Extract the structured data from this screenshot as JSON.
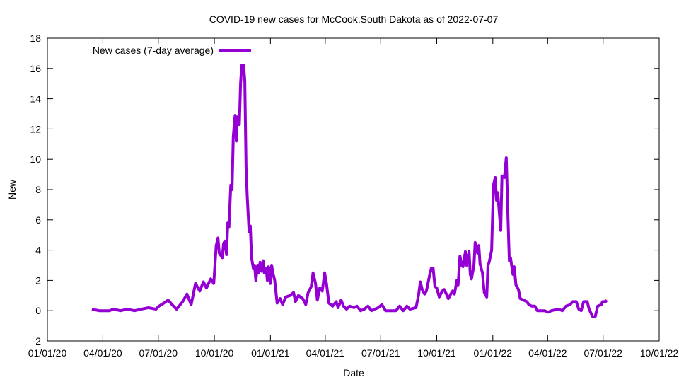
{
  "chart_data": {
    "type": "line",
    "title": "COVID-19 new cases for McCook,South Dakota as of 2022-07-07",
    "xlabel": "Date",
    "ylabel": "New",
    "ylim": [
      -2,
      18
    ],
    "yticks": [
      -2,
      0,
      2,
      4,
      6,
      8,
      10,
      12,
      14,
      16,
      18
    ],
    "xlim_days_since_2020_01_01": [
      0,
      1004
    ],
    "xticks": [
      {
        "label": "01/01/20",
        "day": 0
      },
      {
        "label": "04/01/20",
        "day": 91
      },
      {
        "label": "07/01/20",
        "day": 182
      },
      {
        "label": "10/01/20",
        "day": 274
      },
      {
        "label": "01/01/21",
        "day": 366
      },
      {
        "label": "04/01/21",
        "day": 456
      },
      {
        "label": "07/01/21",
        "day": 547
      },
      {
        "label": "10/01/21",
        "day": 639
      },
      {
        "label": "01/01/22",
        "day": 731
      },
      {
        "label": "04/01/22",
        "day": 821
      },
      {
        "label": "07/01/22",
        "day": 912
      },
      {
        "label": "10/01/22",
        "day": 1004
      }
    ],
    "grid": false,
    "legend_position": "top-left",
    "series": [
      {
        "name": "New cases (7-day average)",
        "color": "#9400d3",
        "x": [
          73,
          85,
          102,
          108,
          120,
          131,
          143,
          154,
          166,
          178,
          183,
          191,
          198,
          207,
          212,
          222,
          229,
          236,
          243,
          250,
          256,
          261,
          268,
          273,
          277,
          280,
          282,
          287,
          289,
          291,
          294,
          296,
          298,
          301,
          303,
          305,
          308,
          310,
          312,
          315,
          317,
          319,
          322,
          324,
          326,
          328,
          331,
          333,
          335,
          338,
          340,
          342,
          345,
          347,
          349,
          352,
          354,
          356,
          359,
          361,
          363,
          366,
          368,
          370,
          373,
          377,
          382,
          386,
          391,
          398,
          404,
          407,
          412,
          419,
          424,
          428,
          433,
          436,
          440,
          443,
          447,
          451,
          455,
          458,
          462,
          468,
          474,
          477,
          482,
          486,
          491,
          496,
          503,
          508,
          514,
          520,
          526,
          532,
          537,
          543,
          549,
          555,
          572,
          578,
          584,
          590,
          595,
          605,
          609,
          612,
          615,
          619,
          622,
          627,
          630,
          633,
          636,
          639,
          643,
          648,
          651,
          656,
          658,
          662,
          665,
          668,
          672,
          674,
          677,
          680,
          682,
          686,
          688,
          692,
          694,
          696,
          700,
          702,
          706,
          708,
          710,
          714,
          717,
          721,
          723,
          725,
          729,
          732,
          735,
          737,
          739,
          744,
          746,
          750,
          753,
          756,
          758,
          760,
          764,
          766,
          769,
          773,
          776,
          781,
          787,
          790,
          795,
          800,
          804,
          816,
          822,
          827,
          839,
          845,
          851,
          858,
          862,
          868,
          872,
          876,
          880,
          886,
          889,
          895,
          899,
          903,
          909,
          911,
          916,
          918
        ],
        "y": [
          0.1,
          0,
          0,
          0.1,
          0,
          0.1,
          0,
          0.1,
          0.2,
          0.1,
          0.3,
          0.5,
          0.7,
          0.3,
          0.1,
          0.6,
          1.1,
          0.4,
          1.8,
          1.3,
          1.9,
          1.5,
          2.1,
          1.8,
          4.3,
          4.8,
          3.8,
          3.5,
          4.4,
          4.6,
          3.7,
          5.8,
          5.5,
          8.3,
          8.0,
          11.5,
          12.9,
          11.2,
          12.8,
          12.3,
          15.0,
          16.2,
          16.2,
          15.2,
          9.5,
          7.5,
          5.2,
          5.6,
          3.5,
          2.8,
          3.0,
          2.0,
          3.0,
          2.5,
          3.2,
          2.6,
          3.3,
          2.5,
          2.8,
          2.0,
          2.9,
          1.8,
          3.0,
          2.5,
          2.0,
          0.5,
          0.8,
          0.4,
          0.9,
          1.0,
          1.2,
          0.6,
          1.0,
          0.8,
          0.4,
          1.2,
          1.6,
          2.5,
          1.8,
          0.7,
          1.5,
          1.3,
          2.5,
          1.8,
          0.5,
          0.3,
          0.6,
          0.2,
          0.7,
          0.3,
          0.1,
          0.3,
          0.2,
          0.3,
          0,
          0.1,
          0.3,
          0,
          0.1,
          0.2,
          0.4,
          0,
          0,
          0.3,
          0,
          0.3,
          0.1,
          0.2,
          1.0,
          1.9,
          1.4,
          1.1,
          1.3,
          2.3,
          2.8,
          2.8,
          1.6,
          1.5,
          0.9,
          1.3,
          1.4,
          1.0,
          0.8,
          1.1,
          1.3,
          1.1,
          2.0,
          1.7,
          3.6,
          3.0,
          2.9,
          3.9,
          3.0,
          3.9,
          2.4,
          2.1,
          3.0,
          4.5,
          3.8,
          4.3,
          3.1,
          2.5,
          1.2,
          0.9,
          3.0,
          3.2,
          4.0,
          8.3,
          8.8,
          7.3,
          7.8,
          5.3,
          8.9,
          8.8,
          10.1,
          6.0,
          3.3,
          3.5,
          2.4,
          2.9,
          1.7,
          1.4,
          0.8,
          0.7,
          0.6,
          0.4,
          0.3,
          0.3,
          0,
          0,
          -0.1,
          0,
          0.1,
          0,
          0.3,
          0.4,
          0.6,
          0.6,
          0.1,
          0,
          0.6,
          0.6,
          0.1,
          -0.4,
          -0.4,
          0.3,
          0.4,
          0.6,
          0.6,
          0.7
        ]
      }
    ]
  }
}
